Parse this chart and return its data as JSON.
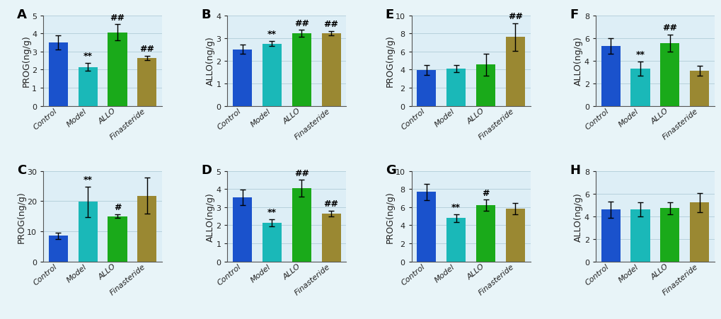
{
  "panels": [
    {
      "label": "A",
      "ylabel": "PROG(ng/g)",
      "ylim": [
        0,
        5
      ],
      "yticks": [
        0,
        1,
        2,
        3,
        4,
        5
      ],
      "values": [
        3.5,
        2.15,
        4.05,
        2.65
      ],
      "errors": [
        0.4,
        0.22,
        0.45,
        0.12
      ],
      "annotations": [
        "",
        "**",
        "##",
        "##"
      ]
    },
    {
      "label": "B",
      "ylabel": "ALLO(ng/g)",
      "ylim": [
        0,
        4
      ],
      "yticks": [
        0,
        1,
        2,
        3,
        4
      ],
      "values": [
        2.5,
        2.75,
        3.2,
        3.2
      ],
      "errors": [
        0.2,
        0.12,
        0.15,
        0.1
      ],
      "annotations": [
        "",
        "**",
        "##",
        "##"
      ]
    },
    {
      "label": "E",
      "ylabel": "PROG(ng/g)",
      "ylim": [
        0,
        10
      ],
      "yticks": [
        0,
        2,
        4,
        6,
        8,
        10
      ],
      "values": [
        3.95,
        4.1,
        4.55,
        7.6
      ],
      "errors": [
        0.55,
        0.42,
        1.2,
        1.5
      ],
      "annotations": [
        "",
        "",
        "",
        "##"
      ]
    },
    {
      "label": "F",
      "ylabel": "ALLO(ng/g)",
      "ylim": [
        0,
        8
      ],
      "yticks": [
        0,
        2,
        4,
        6,
        8
      ],
      "values": [
        5.3,
        3.3,
        5.55,
        3.1
      ],
      "errors": [
        0.7,
        0.62,
        0.75,
        0.42
      ],
      "annotations": [
        "",
        "**",
        "##",
        ""
      ]
    },
    {
      "label": "C",
      "ylabel": "PROG(ng/g)",
      "ylim": [
        0,
        30
      ],
      "yticks": [
        0,
        10,
        20,
        30
      ],
      "values": [
        8.5,
        19.8,
        15.0,
        21.8
      ],
      "errors": [
        1.0,
        5.0,
        0.55,
        6.0
      ],
      "annotations": [
        "",
        "**",
        "#",
        ""
      ]
    },
    {
      "label": "D",
      "ylabel": "ALLO(ng/g)",
      "ylim": [
        0,
        5
      ],
      "yticks": [
        0,
        1,
        2,
        3,
        4,
        5
      ],
      "values": [
        3.55,
        2.15,
        4.05,
        2.65
      ],
      "errors": [
        0.42,
        0.2,
        0.45,
        0.15
      ],
      "annotations": [
        "",
        "**",
        "##",
        "##"
      ]
    },
    {
      "label": "G",
      "ylabel": "PROG(ng/g)",
      "ylim": [
        0,
        10
      ],
      "yticks": [
        0,
        2,
        4,
        6,
        8,
        10
      ],
      "values": [
        7.7,
        4.8,
        6.2,
        5.8
      ],
      "errors": [
        0.9,
        0.42,
        0.62,
        0.62
      ],
      "annotations": [
        "",
        "**",
        "#",
        ""
      ]
    },
    {
      "label": "H",
      "ylabel": "ALLO(ng/g)",
      "ylim": [
        0,
        8
      ],
      "yticks": [
        0,
        2,
        4,
        6,
        8
      ],
      "values": [
        4.6,
        4.6,
        4.7,
        5.2
      ],
      "errors": [
        0.72,
        0.62,
        0.52,
        0.82
      ],
      "annotations": [
        "",
        "",
        "",
        ""
      ]
    }
  ],
  "categories": [
    "Control",
    "Model",
    "ALLO",
    "Finasteride"
  ],
  "bar_colors": [
    "#1a52cc",
    "#1ab8b8",
    "#1aaa1a",
    "#9a8832"
  ],
  "capsize": 3,
  "bar_width": 0.65,
  "ylabel_fontsize": 9,
  "tick_fontsize": 8,
  "annot_fontsize": 9,
  "panel_label_fontsize": 13,
  "background_color": "#e8f4f8",
  "plot_bg_color": "#ddeef6",
  "grid_color": "#b0ccd8",
  "spine_color": "#555555"
}
